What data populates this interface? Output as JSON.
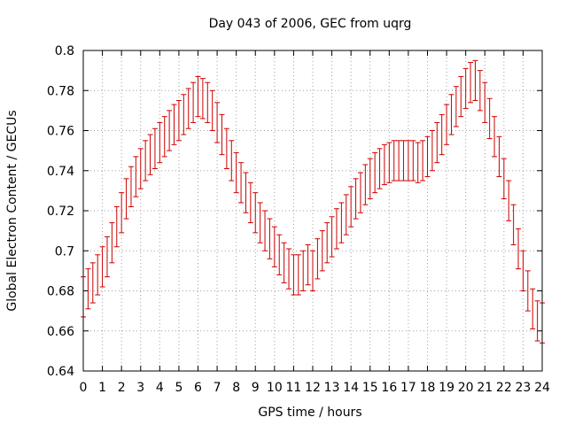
{
  "chart_data": {
    "type": "line",
    "title": "Day 043 of 2006, GEC from uqrg",
    "xlabel": "GPS time / hours",
    "ylabel": "Global Electron Content / GECUs",
    "xlim": [
      0,
      24
    ],
    "ylim": [
      0.64,
      0.8
    ],
    "x_ticks": [
      0,
      1,
      2,
      3,
      4,
      5,
      6,
      7,
      8,
      9,
      10,
      11,
      12,
      13,
      14,
      15,
      16,
      17,
      18,
      19,
      20,
      21,
      22,
      23,
      24
    ],
    "x_tick_labels": [
      "0",
      "1",
      "2",
      "3",
      "4",
      "5",
      "6",
      "7",
      "8",
      "9",
      "10",
      "11",
      "12",
      "13",
      "14",
      "15",
      "16",
      "17",
      "18",
      "19",
      "20",
      "21",
      "22",
      "23",
      "24"
    ],
    "y_ticks": [
      0.64,
      0.66,
      0.68,
      0.7,
      0.72,
      0.74,
      0.76,
      0.78,
      0.8
    ],
    "y_tick_labels": [
      "0.64",
      "0.66",
      "0.68",
      "0.7",
      "0.72",
      "0.74",
      "0.76",
      "0.78",
      "0.8"
    ],
    "grid": true,
    "series_color": "#cc0000",
    "error": 0.01,
    "series": [
      {
        "x": [
          0.0,
          0.25,
          0.5,
          0.75,
          1.0,
          1.25,
          1.5,
          1.75,
          2.0,
          2.25,
          2.5,
          2.75,
          3.0,
          3.25,
          3.5,
          3.75,
          4.0,
          4.25,
          4.5,
          4.75,
          5.0,
          5.25,
          5.5,
          5.75,
          6.0,
          6.25,
          6.5,
          6.75,
          7.0,
          7.25,
          7.5,
          7.75,
          8.0,
          8.25,
          8.5,
          8.75,
          9.0,
          9.25,
          9.5,
          9.75,
          10.0,
          10.25,
          10.5,
          10.75,
          11.0,
          11.25,
          11.5,
          11.75,
          12.0,
          12.25,
          12.5,
          12.75,
          13.0,
          13.25,
          13.5,
          13.75,
          14.0,
          14.25,
          14.5,
          14.75,
          15.0,
          15.25,
          15.5,
          15.75,
          16.0,
          16.25,
          16.5,
          16.75,
          17.0,
          17.25,
          17.5,
          17.75,
          18.0,
          18.25,
          18.5,
          18.75,
          19.0,
          19.25,
          19.5,
          19.75,
          20.0,
          20.25,
          20.5,
          20.75,
          21.0,
          21.25,
          21.5,
          21.75,
          22.0,
          22.25,
          22.5,
          22.75,
          23.0,
          23.25,
          23.5,
          23.75,
          24.0
        ],
        "y": [
          0.677,
          0.681,
          0.684,
          0.688,
          0.692,
          0.697,
          0.704,
          0.712,
          0.719,
          0.726,
          0.732,
          0.737,
          0.741,
          0.745,
          0.748,
          0.751,
          0.754,
          0.757,
          0.76,
          0.763,
          0.765,
          0.768,
          0.771,
          0.774,
          0.777,
          0.776,
          0.774,
          0.77,
          0.764,
          0.758,
          0.751,
          0.745,
          0.739,
          0.734,
          0.729,
          0.724,
          0.719,
          0.714,
          0.71,
          0.706,
          0.702,
          0.698,
          0.694,
          0.691,
          0.688,
          0.688,
          0.69,
          0.693,
          0.69,
          0.696,
          0.7,
          0.704,
          0.707,
          0.711,
          0.714,
          0.718,
          0.722,
          0.726,
          0.729,
          0.733,
          0.736,
          0.739,
          0.741,
          0.743,
          0.744,
          0.745,
          0.745,
          0.745,
          0.745,
          0.745,
          0.744,
          0.745,
          0.747,
          0.75,
          0.754,
          0.758,
          0.763,
          0.768,
          0.772,
          0.777,
          0.781,
          0.784,
          0.785,
          0.78,
          0.774,
          0.766,
          0.757,
          0.747,
          0.736,
          0.725,
          0.713,
          0.701,
          0.69,
          0.68,
          0.671,
          0.665,
          0.664
        ]
      }
    ]
  }
}
